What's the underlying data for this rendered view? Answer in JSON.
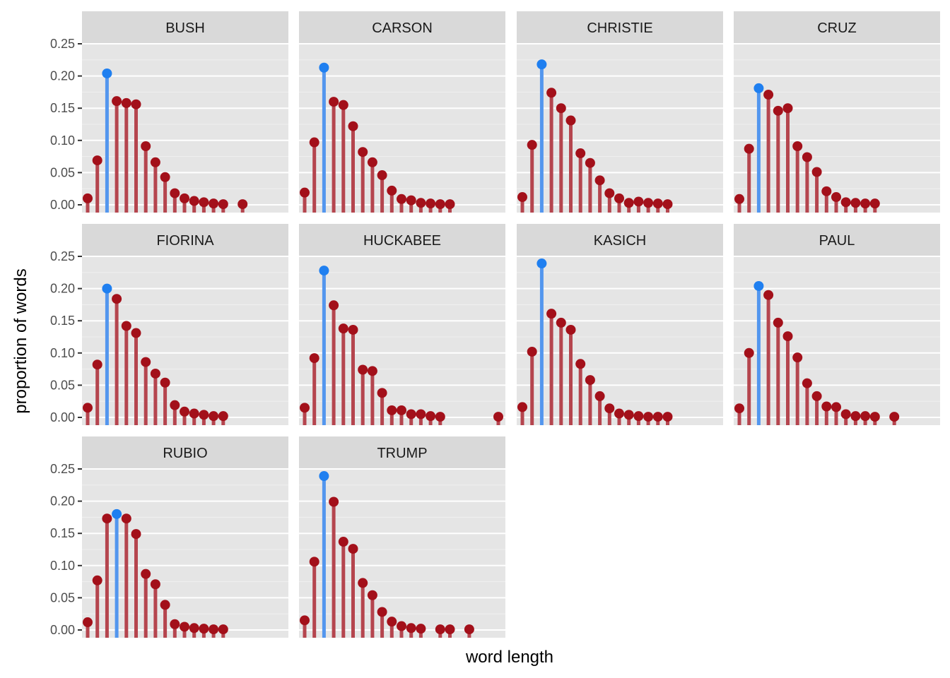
{
  "chart_data": {
    "type": "lollipop-facet",
    "xlabel": "word length",
    "ylabel": "proportion of words",
    "ylim": [
      0,
      0.265
    ],
    "yticks": [
      0,
      0.05,
      0.1,
      0.15,
      0.2,
      0.25
    ],
    "ytick_labels": [
      "0.00",
      "0.05",
      "0.10",
      "0.15",
      "0.20",
      "0.25"
    ],
    "xlim": [
      0,
      21
    ],
    "grid": true,
    "colors": {
      "panel_bg": "#e5e5e5",
      "strip_bg": "#d9d9d9",
      "grid_major": "#ffffff",
      "grid_minor": "#f0f0f0",
      "bar_default": "#b5454e",
      "point_default": "#a3101a",
      "bar_highlight": "#5396ee",
      "point_highlight": "#1f7ff0"
    },
    "panels": [
      {
        "name": "BUSH",
        "highlight": 3,
        "x": [
          1,
          2,
          3,
          4,
          5,
          6,
          7,
          8,
          9,
          10,
          11,
          12,
          13,
          14,
          15,
          17
        ],
        "values": [
          0.01,
          0.069,
          0.204,
          0.161,
          0.158,
          0.156,
          0.091,
          0.066,
          0.043,
          0.018,
          0.01,
          0.006,
          0.004,
          0.002,
          0.001,
          0.001
        ]
      },
      {
        "name": "CARSON",
        "highlight": 3,
        "x": [
          1,
          2,
          3,
          4,
          5,
          6,
          7,
          8,
          9,
          10,
          11,
          12,
          13,
          14,
          15,
          16
        ],
        "values": [
          0.019,
          0.097,
          0.213,
          0.16,
          0.155,
          0.122,
          0.082,
          0.066,
          0.046,
          0.022,
          0.009,
          0.007,
          0.003,
          0.002,
          0.001,
          0.001
        ]
      },
      {
        "name": "CHRISTIE",
        "highlight": 3,
        "x": [
          1,
          2,
          3,
          4,
          5,
          6,
          7,
          8,
          9,
          10,
          11,
          12,
          13,
          14,
          15,
          16
        ],
        "values": [
          0.012,
          0.093,
          0.218,
          0.174,
          0.15,
          0.131,
          0.08,
          0.065,
          0.038,
          0.018,
          0.01,
          0.003,
          0.005,
          0.003,
          0.002,
          0.001
        ]
      },
      {
        "name": "CRUZ",
        "highlight": 3,
        "x": [
          1,
          2,
          3,
          4,
          5,
          6,
          7,
          8,
          9,
          10,
          11,
          12,
          13,
          14,
          15
        ],
        "values": [
          0.009,
          0.087,
          0.181,
          0.171,
          0.146,
          0.15,
          0.091,
          0.074,
          0.051,
          0.021,
          0.012,
          0.004,
          0.003,
          0.002,
          0.002
        ]
      },
      {
        "name": "FIORINA",
        "highlight": 3,
        "x": [
          1,
          2,
          3,
          4,
          5,
          6,
          7,
          8,
          9,
          10,
          11,
          12,
          13,
          14,
          15
        ],
        "values": [
          0.015,
          0.082,
          0.2,
          0.184,
          0.142,
          0.131,
          0.086,
          0.068,
          0.054,
          0.019,
          0.009,
          0.006,
          0.004,
          0.002,
          0.002
        ]
      },
      {
        "name": "HUCKABEE",
        "highlight": 3,
        "x": [
          1,
          2,
          3,
          4,
          5,
          6,
          7,
          8,
          9,
          10,
          11,
          12,
          13,
          14,
          15,
          21
        ],
        "values": [
          0.015,
          0.092,
          0.228,
          0.174,
          0.138,
          0.136,
          0.074,
          0.072,
          0.038,
          0.011,
          0.011,
          0.005,
          0.005,
          0.002,
          0.001,
          0.001
        ]
      },
      {
        "name": "KASICH",
        "highlight": 3,
        "x": [
          1,
          2,
          3,
          4,
          5,
          6,
          7,
          8,
          9,
          10,
          11,
          12,
          13,
          14,
          15,
          16
        ],
        "values": [
          0.016,
          0.102,
          0.239,
          0.161,
          0.147,
          0.136,
          0.083,
          0.058,
          0.033,
          0.014,
          0.006,
          0.004,
          0.002,
          0.001,
          0.001,
          0.001
        ]
      },
      {
        "name": "PAUL",
        "highlight": 3,
        "x": [
          1,
          2,
          3,
          4,
          5,
          6,
          7,
          8,
          9,
          10,
          11,
          12,
          13,
          14,
          15,
          17
        ],
        "values": [
          0.014,
          0.1,
          0.204,
          0.19,
          0.147,
          0.126,
          0.093,
          0.053,
          0.033,
          0.017,
          0.016,
          0.005,
          0.002,
          0.002,
          0.001,
          0.001
        ]
      },
      {
        "name": "RUBIO",
        "highlight": 4,
        "x": [
          1,
          2,
          3,
          4,
          5,
          6,
          7,
          8,
          9,
          10,
          11,
          12,
          13,
          14,
          15
        ],
        "values": [
          0.012,
          0.077,
          0.173,
          0.18,
          0.173,
          0.149,
          0.087,
          0.071,
          0.039,
          0.009,
          0.005,
          0.003,
          0.002,
          0.001,
          0.001
        ]
      },
      {
        "name": "TRUMP",
        "highlight": 3,
        "x": [
          1,
          2,
          3,
          4,
          5,
          6,
          7,
          8,
          9,
          10,
          11,
          12,
          13,
          15,
          16,
          18
        ],
        "values": [
          0.015,
          0.106,
          0.239,
          0.199,
          0.137,
          0.126,
          0.073,
          0.054,
          0.028,
          0.013,
          0.006,
          0.003,
          0.002,
          0.001,
          0.001,
          0.001
        ]
      }
    ]
  }
}
